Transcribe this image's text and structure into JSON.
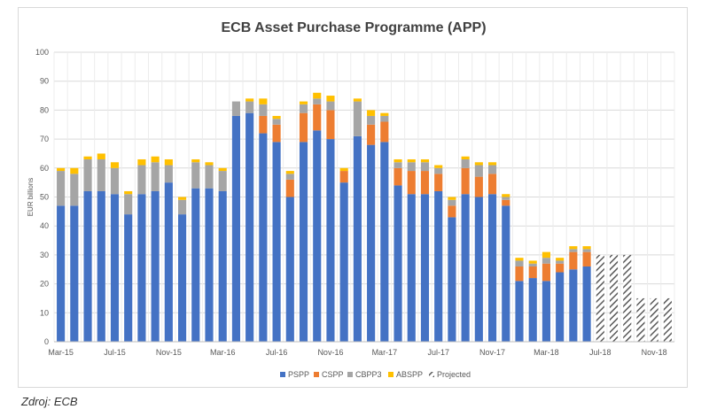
{
  "chart_data": {
    "type": "bar",
    "stacked": true,
    "title": "ECB Asset Purchase Programme (APP)",
    "xlabel": "",
    "ylabel": "EUR billions",
    "ylim": [
      0,
      100
    ],
    "yticks": [
      0,
      10,
      20,
      30,
      40,
      50,
      60,
      70,
      80,
      90,
      100
    ],
    "grid": true,
    "legend_position": "bottom",
    "x_tick_labels": [
      {
        "index": 0,
        "label": "Mar-15"
      },
      {
        "index": 4,
        "label": "Jul-15"
      },
      {
        "index": 8,
        "label": "Nov-15"
      },
      {
        "index": 12,
        "label": "Mar-16"
      },
      {
        "index": 16,
        "label": "Jul-16"
      },
      {
        "index": 20,
        "label": "Nov-16"
      },
      {
        "index": 24,
        "label": "Mar-17"
      },
      {
        "index": 28,
        "label": "Jul-17"
      },
      {
        "index": 32,
        "label": "Nov-17"
      },
      {
        "index": 36,
        "label": "Mar-18"
      },
      {
        "index": 40,
        "label": "Jul-18"
      },
      {
        "index": 44,
        "label": "Nov-18"
      }
    ],
    "categories": [
      "Mar-15",
      "Apr-15",
      "May-15",
      "Jun-15",
      "Jul-15",
      "Aug-15",
      "Sep-15",
      "Oct-15",
      "Nov-15",
      "Dec-15",
      "Jan-16",
      "Feb-16",
      "Mar-16",
      "Apr-16",
      "May-16",
      "Jun-16",
      "Jul-16",
      "Aug-16",
      "Sep-16",
      "Oct-16",
      "Nov-16",
      "Dec-16",
      "Jan-17",
      "Feb-17",
      "Mar-17",
      "Apr-17",
      "May-17",
      "Jun-17",
      "Jul-17",
      "Aug-17",
      "Sep-17",
      "Oct-17",
      "Nov-17",
      "Dec-17",
      "Jan-18",
      "Feb-18",
      "Mar-18",
      "Apr-18",
      "May-18",
      "Jun-18",
      "Jul-18",
      "Aug-18",
      "Sep-18",
      "Oct-18",
      "Nov-18",
      "Dec-18"
    ],
    "series": [
      {
        "name": "PSPP",
        "color": "#4472c4",
        "values": [
          47,
          47,
          52,
          52,
          51,
          44,
          51,
          52,
          55,
          44,
          53,
          53,
          52,
          78,
          79,
          72,
          69,
          50,
          69,
          73,
          70,
          55,
          71,
          68,
          69,
          54,
          51,
          51,
          52,
          43,
          51,
          50,
          51,
          47,
          21,
          22,
          21,
          24,
          25,
          26,
          null,
          null,
          null,
          null,
          null,
          null
        ]
      },
      {
        "name": "CSPP",
        "color": "#ed7d31",
        "values": [
          0,
          0,
          0,
          0,
          0,
          0,
          0,
          0,
          0,
          0,
          0,
          0,
          0,
          0,
          0,
          6,
          6,
          6,
          10,
          9,
          10,
          4,
          0,
          7,
          7,
          6,
          8,
          8,
          6,
          4,
          9,
          7,
          7,
          2,
          5,
          4,
          6,
          3,
          6,
          5,
          null,
          null,
          null,
          null,
          null,
          null
        ]
      },
      {
        "name": "CBPP3",
        "color": "#a5a5a5",
        "values": [
          12,
          11,
          11,
          11,
          9,
          7,
          10,
          10,
          6,
          5,
          9,
          8,
          7,
          5,
          4,
          4,
          2,
          2,
          3,
          2,
          3,
          0,
          12,
          3,
          2,
          2,
          3,
          3,
          2,
          2,
          3,
          4,
          3,
          1,
          2,
          1,
          2,
          1,
          1,
          1,
          null,
          null,
          null,
          null,
          null,
          null
        ]
      },
      {
        "name": "ABSPP",
        "color": "#ffc000",
        "values": [
          1,
          2,
          1,
          2,
          2,
          1,
          2,
          2,
          2,
          1,
          1,
          1,
          1,
          0,
          1,
          2,
          1,
          1,
          1,
          2,
          2,
          1,
          1,
          2,
          1,
          1,
          1,
          1,
          1,
          1,
          1,
          1,
          1,
          1,
          1,
          1,
          2,
          1,
          1,
          1,
          null,
          null,
          null,
          null,
          null,
          null
        ]
      },
      {
        "name": "Projected",
        "color": "#595959",
        "values": [
          null,
          null,
          null,
          null,
          null,
          null,
          null,
          null,
          null,
          null,
          null,
          null,
          null,
          null,
          null,
          null,
          null,
          null,
          null,
          null,
          null,
          null,
          null,
          null,
          null,
          null,
          null,
          null,
          null,
          null,
          null,
          null,
          null,
          null,
          null,
          null,
          null,
          null,
          null,
          null,
          30,
          30,
          30,
          15,
          15,
          15
        ]
      }
    ]
  },
  "source_note": "Zdroj: ECB"
}
